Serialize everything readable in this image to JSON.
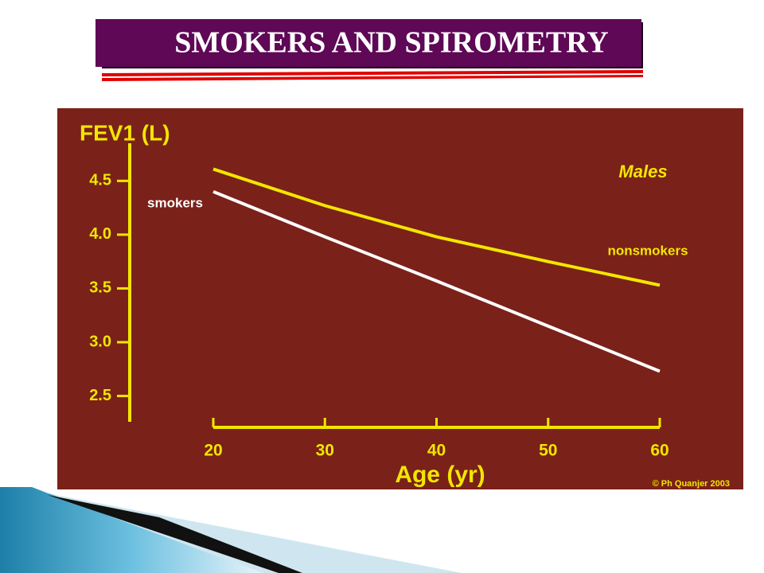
{
  "slide_title": "SMOKERS AND SPIROMETRY",
  "chart_data": {
    "type": "line",
    "ylabel": "FEV1 (L)",
    "xlabel": "Age (yr)",
    "annotations": [
      "Males",
      "© Ph Quanjer 2003"
    ],
    "x": [
      20,
      30,
      40,
      50,
      60
    ],
    "series": [
      {
        "name": "nonsmokers",
        "color": "#f2e600",
        "values": [
          4.61,
          4.27,
          3.98,
          3.75,
          3.53
        ]
      },
      {
        "name": "smokers",
        "color": "#ffffff",
        "values": [
          4.4,
          3.98,
          3.57,
          3.15,
          2.73
        ]
      }
    ],
    "xlim": [
      20,
      60
    ],
    "xticks": [
      20,
      30,
      40,
      50,
      60
    ],
    "ylim": [
      2.26,
      4.85
    ],
    "yticks": [
      2.5,
      {
        "value": 3,
        "label": "3.0"
      },
      3.5,
      {
        "value": 4,
        "label": "4.0"
      },
      4.5
    ],
    "background": "#7a2119",
    "axis_color": "#f2e600"
  }
}
